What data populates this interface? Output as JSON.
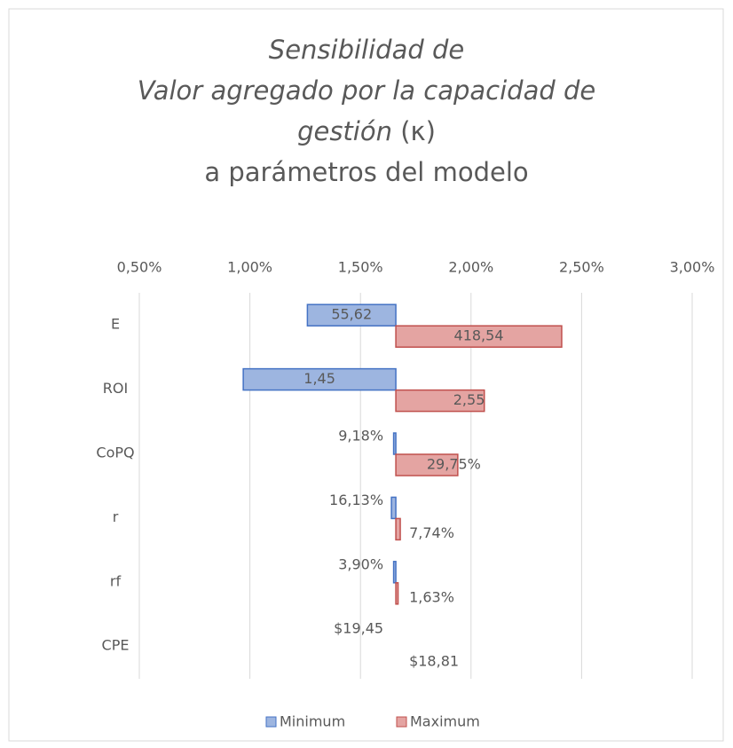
{
  "chart_data": {
    "type": "tornado",
    "title_lines": [
      "Sensibilidad de",
      "Valor agregado por la capacidad de",
      "gestión",
      "(κ)",
      "a parámetros del modelo"
    ],
    "categories": [
      "E",
      "ROI",
      "CoPQ",
      "r",
      "rf",
      "CPE"
    ],
    "base": 1.66,
    "series": [
      {
        "name": "Minimum",
        "color": "#4472c4",
        "fill": "#9db5e0",
        "values": [
          1.26,
          0.97,
          1.65,
          1.64,
          1.65,
          1.66
        ],
        "labels": [
          "55,62",
          "1,45",
          "9,18%",
          "16,13%",
          "3,90%",
          "$19,45"
        ]
      },
      {
        "name": "Maximum",
        "color": "#c0504d",
        "fill": "#e4a4a2",
        "values": [
          2.41,
          2.06,
          1.94,
          1.68,
          1.67,
          1.66
        ],
        "labels": [
          "418,54",
          "2,55",
          "29,75%",
          "7,74%",
          "1,63%",
          "$18,81"
        ]
      }
    ],
    "xlim": [
      0.5,
      3.0
    ],
    "xticks": [
      {
        "value": 0.5,
        "label": "0,50%"
      },
      {
        "value": 1.0,
        "label": "1,00%"
      },
      {
        "value": 1.5,
        "label": "1,50%"
      },
      {
        "value": 2.0,
        "label": "2,00%"
      },
      {
        "value": 2.5,
        "label": "2,50%"
      },
      {
        "value": 3.0,
        "label": "3,00%"
      }
    ],
    "grid": true
  }
}
